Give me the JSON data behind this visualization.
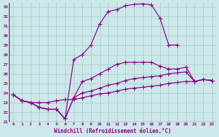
{
  "xlabel": "Windchill (Refroidissement éolien,°C)",
  "background_color": "#cce8e8",
  "line_color": "#880088",
  "grid_color": "#aacccc",
  "xlim": [
    -0.5,
    23.5
  ],
  "ylim": [
    21,
    33.4
  ],
  "yticks": [
    21,
    22,
    23,
    24,
    25,
    26,
    27,
    28,
    29,
    30,
    31,
    32,
    33
  ],
  "xticks": [
    0,
    1,
    2,
    3,
    4,
    5,
    6,
    7,
    8,
    9,
    10,
    11,
    12,
    13,
    14,
    15,
    16,
    17,
    18,
    19,
    20,
    21,
    22,
    23
  ],
  "series": [
    [
      23.8,
      23.2,
      23.0,
      22.5,
      22.3,
      22.3,
      21.3,
      27.5,
      28.0,
      29.0,
      31.2,
      32.5,
      32.7,
      33.1,
      33.25,
      33.3,
      33.2,
      31.8,
      29.0,
      29.0,
      null,
      null,
      null,
      null
    ],
    [
      23.8,
      23.2,
      23.0,
      22.5,
      22.3,
      22.3,
      21.3,
      23.5,
      25.2,
      25.5,
      26.0,
      26.5,
      27.0,
      27.2,
      27.2,
      27.2,
      27.2,
      26.8,
      26.5,
      26.5,
      26.7,
      25.2,
      25.4,
      25.3
    ],
    [
      23.8,
      23.2,
      23.0,
      22.5,
      22.3,
      22.3,
      21.3,
      23.5,
      24.0,
      24.2,
      24.5,
      24.8,
      25.0,
      25.3,
      25.5,
      25.6,
      25.7,
      25.8,
      26.0,
      26.1,
      26.2,
      25.2,
      25.4,
      25.3
    ],
    [
      23.8,
      23.2,
      23.0,
      23.0,
      23.0,
      23.2,
      23.3,
      23.3,
      23.5,
      23.7,
      23.9,
      24.0,
      24.2,
      24.4,
      24.5,
      24.6,
      24.7,
      24.8,
      25.0,
      25.1,
      25.2,
      25.2,
      25.4,
      25.3
    ]
  ]
}
